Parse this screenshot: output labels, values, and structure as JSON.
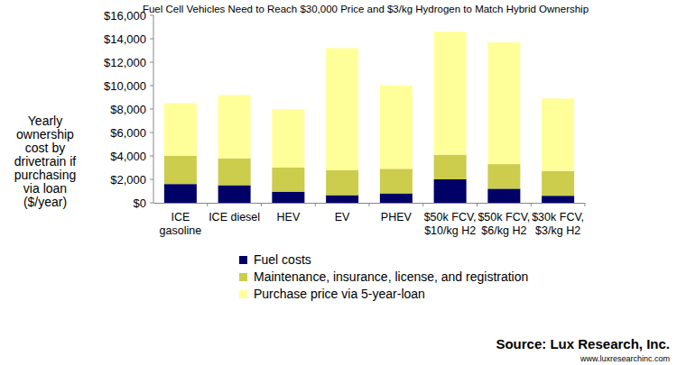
{
  "chart_data": {
    "type": "bar",
    "title": "Fuel Cell Vehicles Need to Reach $30,000 Price and $3/kg Hydrogen to Match Hybrid Ownership",
    "y_label": "Yearly ownership cost by drivetrain if purchasing via loan ($/year)",
    "categories": [
      "ICE gasoline",
      "ICE diesel",
      "HEV",
      "EV",
      "PHEV",
      "$50k FCV, $10/kg H2",
      "$50k FCV, $6/kg H2",
      "$30k FCV, $3/kg H2"
    ],
    "series": [
      {
        "name": "Fuel costs",
        "color": "#000066",
        "values": [
          1600,
          1500,
          950,
          650,
          800,
          2000,
          1200,
          600
        ]
      },
      {
        "name": "Maintenance, insurance, license, and registration",
        "color": "#cccc4d",
        "values": [
          2400,
          2300,
          2050,
          2150,
          2100,
          2100,
          2100,
          2100
        ]
      },
      {
        "name": "Purchase price via 5-year-loan",
        "color": "#ffff99",
        "values": [
          4500,
          5400,
          5000,
          10400,
          7100,
          10500,
          10400,
          6200
        ]
      }
    ],
    "stacked": true,
    "grid": false,
    "legend": "bottom",
    "ylim": [
      0,
      16000
    ],
    "yticks": [
      {
        "value": 0,
        "label": "$0"
      },
      {
        "value": 2000,
        "label": "$2,000"
      },
      {
        "value": 4000,
        "label": "$4,000"
      },
      {
        "value": 6000,
        "label": "$6,000"
      },
      {
        "value": 8000,
        "label": "$8,000"
      },
      {
        "value": 10000,
        "label": "$10,000"
      },
      {
        "value": 12000,
        "label": "$12,000"
      },
      {
        "value": 14000,
        "label": "$14,000"
      },
      {
        "value": 16000,
        "label": "$16,000"
      }
    ],
    "annotations": [
      "Source: Lux Research, Inc.",
      "www.luxresearchinc.com"
    ]
  }
}
